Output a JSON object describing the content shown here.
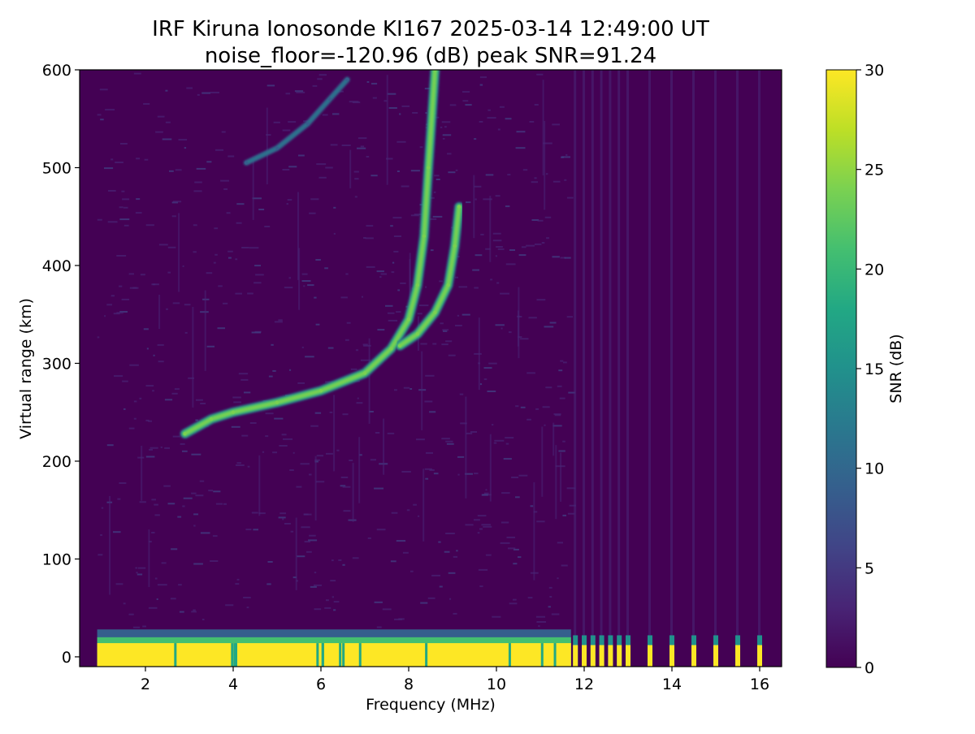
{
  "chart_data": {
    "type": "heatmap",
    "title": "IRF Kiruna Ionosonde KI167 2025-03-14 12:49:00  UT",
    "subtitle": "noise_floor=-120.96 (dB) peak SNR=91.24",
    "xlabel": "Frequency (MHz)",
    "ylabel": "Virtual range (km)",
    "xlim": [
      0.5,
      16.5
    ],
    "ylim": [
      -10,
      600
    ],
    "x_ticks": [
      2,
      4,
      6,
      8,
      10,
      12,
      14,
      16
    ],
    "y_ticks": [
      0,
      100,
      200,
      300,
      400,
      500,
      600
    ],
    "colormap": "viridis",
    "colorbar": {
      "label": "SNR (dB)",
      "range": [
        0,
        30
      ],
      "ticks": [
        0,
        5,
        10,
        15,
        20,
        25,
        30
      ]
    },
    "data_frequency_range_mhz": [
      0.9,
      16.3
    ],
    "traces": [
      {
        "layer": "near-ground echo band",
        "points": [
          [
            0.9,
            5
          ],
          [
            2.6,
            5
          ],
          [
            2.8,
            8
          ],
          [
            11.7,
            8
          ]
        ],
        "snr_db": 30
      },
      {
        "layer": "F2 ordinary trace",
        "points": [
          [
            2.9,
            228
          ],
          [
            3.5,
            243
          ],
          [
            4.0,
            250
          ],
          [
            5.0,
            260
          ],
          [
            6.0,
            272
          ],
          [
            7.0,
            290
          ],
          [
            7.6,
            315
          ],
          [
            8.0,
            345
          ],
          [
            8.2,
            380
          ],
          [
            8.35,
            430
          ],
          [
            8.45,
            500
          ],
          [
            8.6,
            600
          ]
        ],
        "snr_db": 24
      },
      {
        "layer": "F2 extraordinary trace",
        "points": [
          [
            7.8,
            318
          ],
          [
            8.2,
            330
          ],
          [
            8.6,
            352
          ],
          [
            8.9,
            380
          ],
          [
            9.05,
            420
          ],
          [
            9.15,
            460
          ]
        ],
        "snr_db": 23
      },
      {
        "layer": "multiple-hop trace",
        "points": [
          [
            4.3,
            505
          ],
          [
            5.0,
            520
          ],
          [
            5.7,
            545
          ],
          [
            6.2,
            570
          ],
          [
            6.6,
            590
          ]
        ],
        "snr_db": 9
      }
    ],
    "high_frequency_pulse_frequencies_mhz": [
      11.8,
      12.0,
      12.2,
      12.4,
      12.6,
      12.8,
      13.0,
      13.5,
      14.0,
      14.5,
      15.0,
      15.5,
      16.0
    ]
  },
  "colors": {
    "viridis": [
      "#440154",
      "#482475",
      "#414487",
      "#355f8d",
      "#2a788e",
      "#21918c",
      "#22a884",
      "#44bf70",
      "#7ad151",
      "#bddf26",
      "#fde725"
    ],
    "background": "#440154"
  }
}
